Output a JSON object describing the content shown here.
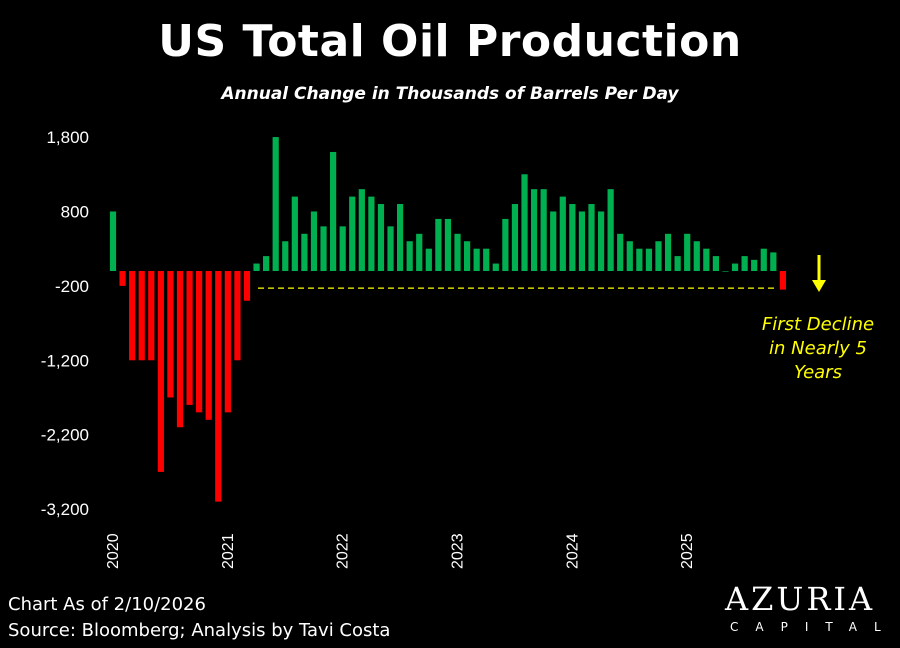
{
  "chart_data": {
    "type": "bar",
    "title": "US Total Oil Production",
    "subtitle": "Annual Change in Thousands of Barrels Per Day",
    "xlabel": "",
    "ylabel": "",
    "ylim": [
      -3200,
      1800
    ],
    "yticks": [
      1800,
      800,
      -200,
      -1200,
      -2200,
      -3200
    ],
    "ytick_labels": [
      "1,800",
      "800",
      "-200",
      "-1,200",
      "-2,200",
      "-3,200"
    ],
    "xtick_labels": [
      "2020",
      "2021",
      "2022",
      "2023",
      "2024",
      "2025"
    ],
    "period": "monthly, Jan 2020 – Nov 2025",
    "values": [
      800,
      -200,
      -1200,
      -1200,
      -1200,
      -2700,
      -1700,
      -2100,
      -1800,
      -1900,
      -2000,
      -3100,
      -1900,
      -1200,
      -400,
      100,
      200,
      1800,
      400,
      1000,
      500,
      800,
      600,
      1600,
      600,
      1000,
      1100,
      1000,
      900,
      600,
      900,
      400,
      500,
      300,
      700,
      700,
      500,
      400,
      300,
      300,
      100,
      700,
      900,
      1300,
      1100,
      1100,
      800,
      1000,
      900,
      800,
      900,
      800,
      1100,
      500,
      400,
      300,
      300,
      400,
      500,
      200,
      500,
      400,
      300,
      200,
      0,
      100,
      200,
      150,
      300,
      250,
      -250
    ],
    "positive_color": "#00b050",
    "negative_color": "#ff0000",
    "reference_line": {
      "value": -230,
      "style": "dashed",
      "color": "#ffff00"
    },
    "grid": false,
    "annotation": {
      "lines": [
        "First Decline",
        "in Nearly 5",
        "Years"
      ],
      "color": "#ffff00",
      "arrow": "down-arrow"
    }
  },
  "footer": {
    "as_of": "Chart As of 2/10/2026",
    "source": "Source: Bloomberg; Analysis by Tavi Costa"
  },
  "logo": {
    "name": "AZURIA",
    "sub": "CAPITAL"
  }
}
